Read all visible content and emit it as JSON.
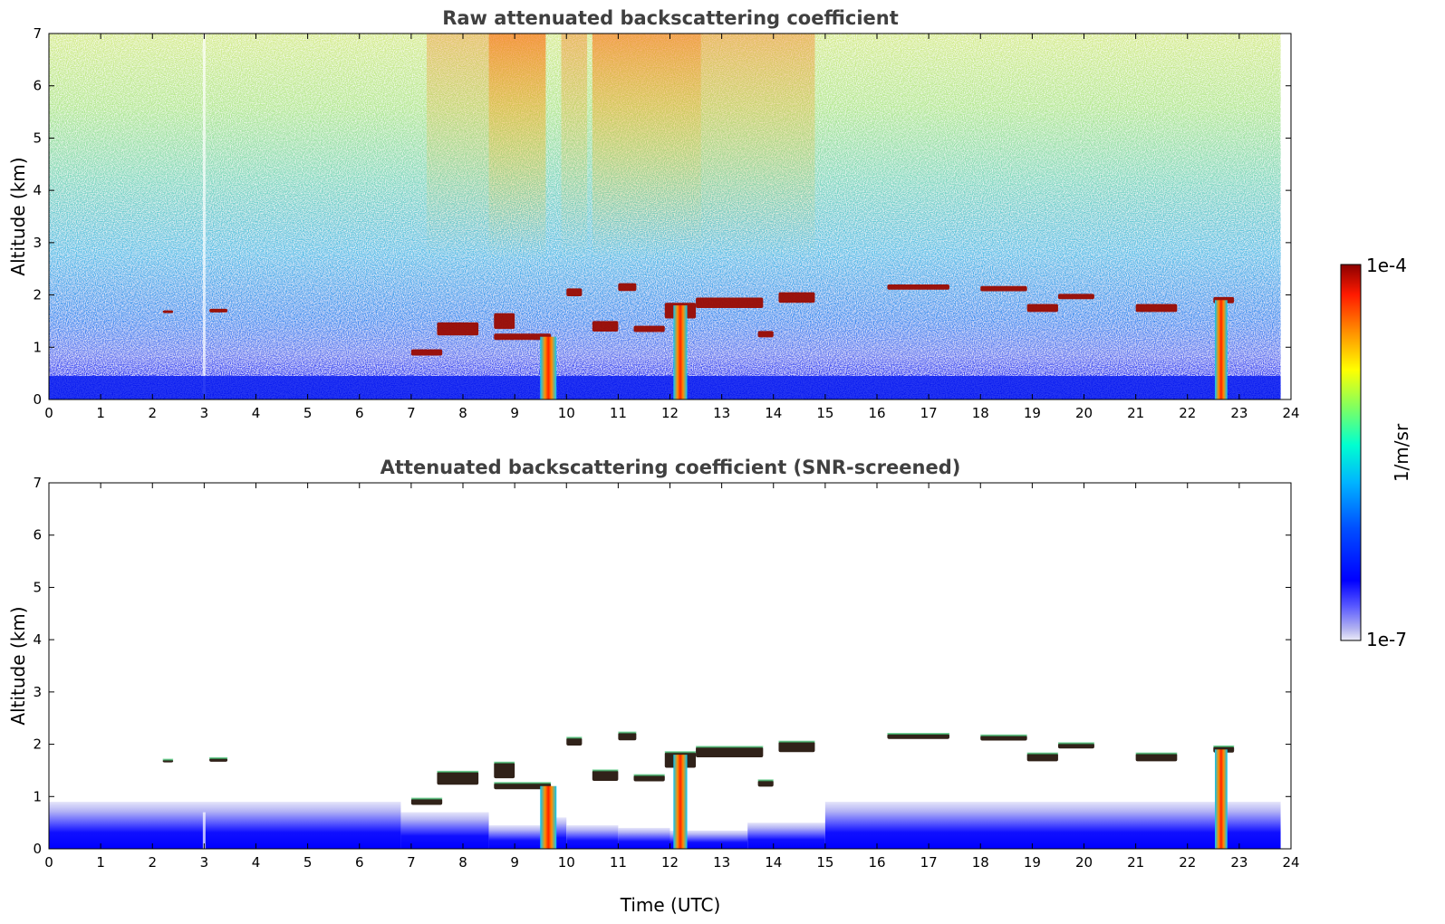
{
  "chart_data": [
    {
      "type": "heatmap",
      "title": "Raw attenuated backscattering coefficient",
      "xlabel": "",
      "ylabel": "Altitude (km)",
      "xlim": [
        0,
        24
      ],
      "ylim": [
        0,
        7
      ],
      "x_ticks": [
        "0",
        "1",
        "2",
        "3",
        "4",
        "5",
        "6",
        "7",
        "8",
        "9",
        "10",
        "11",
        "12",
        "13",
        "14",
        "15",
        "16",
        "17",
        "18",
        "19",
        "20",
        "21",
        "22",
        "23",
        "24"
      ],
      "y_ticks": [
        "0",
        "1",
        "2",
        "3",
        "4",
        "5",
        "6",
        "7"
      ],
      "data_end_x": 23.8,
      "columns": [
        {
          "x": 9.65,
          "top": 1.2,
          "strength": 1.0
        },
        {
          "x": 12.2,
          "top": 1.8,
          "strength": 0.8
        },
        {
          "x": 22.65,
          "top": 1.9,
          "strength": 0.7
        }
      ],
      "layers": [
        {
          "x0": 2.2,
          "x1": 2.4,
          "alt": 1.68,
          "thick": 0.05
        },
        {
          "x0": 3.1,
          "x1": 3.45,
          "alt": 1.7,
          "thick": 0.07
        },
        {
          "x0": 7.0,
          "x1": 7.6,
          "alt": 0.9,
          "thick": 0.12
        },
        {
          "x0": 7.5,
          "x1": 8.3,
          "alt": 1.35,
          "thick": 0.25
        },
        {
          "x0": 8.6,
          "x1": 9.7,
          "alt": 1.2,
          "thick": 0.12
        },
        {
          "x0": 8.6,
          "x1": 9.0,
          "alt": 1.5,
          "thick": 0.3
        },
        {
          "x0": 10.0,
          "x1": 10.3,
          "alt": 2.05,
          "thick": 0.15
        },
        {
          "x0": 10.5,
          "x1": 11.0,
          "alt": 1.4,
          "thick": 0.2
        },
        {
          "x0": 11.0,
          "x1": 11.35,
          "alt": 2.15,
          "thick": 0.15
        },
        {
          "x0": 11.3,
          "x1": 11.9,
          "alt": 1.35,
          "thick": 0.12
        },
        {
          "x0": 11.9,
          "x1": 12.5,
          "alt": 1.7,
          "thick": 0.3
        },
        {
          "x0": 12.5,
          "x1": 13.8,
          "alt": 1.85,
          "thick": 0.2
        },
        {
          "x0": 13.7,
          "x1": 14.0,
          "alt": 1.25,
          "thick": 0.12
        },
        {
          "x0": 14.1,
          "x1": 14.8,
          "alt": 1.95,
          "thick": 0.2
        },
        {
          "x0": 16.2,
          "x1": 17.4,
          "alt": 2.15,
          "thick": 0.1
        },
        {
          "x0": 18.0,
          "x1": 18.9,
          "alt": 2.12,
          "thick": 0.1
        },
        {
          "x0": 18.9,
          "x1": 19.5,
          "alt": 1.75,
          "thick": 0.15
        },
        {
          "x0": 19.5,
          "x1": 20.2,
          "alt": 1.97,
          "thick": 0.1
        },
        {
          "x0": 21.0,
          "x1": 21.8,
          "alt": 1.75,
          "thick": 0.15
        },
        {
          "x0": 22.5,
          "x1": 22.9,
          "alt": 1.9,
          "thick": 0.12
        }
      ],
      "colorbar": {
        "min_label": "1e-7",
        "max_label": "1e-4",
        "unit": "1/m/sr"
      }
    },
    {
      "type": "heatmap",
      "title": "Attenuated backscattering coefficient (SNR-screened)",
      "xlabel": "Time (UTC)",
      "ylabel": "Altitude (km)",
      "xlim": [
        0,
        24
      ],
      "ylim": [
        0,
        7
      ],
      "x_ticks": [
        "0",
        "1",
        "2",
        "3",
        "4",
        "5",
        "6",
        "7",
        "8",
        "9",
        "10",
        "11",
        "12",
        "13",
        "14",
        "15",
        "16",
        "17",
        "18",
        "19",
        "20",
        "21",
        "22",
        "23",
        "24"
      ],
      "y_ticks": [
        "0",
        "1",
        "2",
        "3",
        "4",
        "5",
        "6",
        "7"
      ],
      "data_end_x": 23.8
    }
  ],
  "colors": {
    "title": "#404040",
    "colormap": [
      "#e6e6f5",
      "#0000ff",
      "#00b4ff",
      "#00ffd0",
      "#80ff60",
      "#ffff00",
      "#ff9000",
      "#ff1a00",
      "#8b0000"
    ]
  }
}
